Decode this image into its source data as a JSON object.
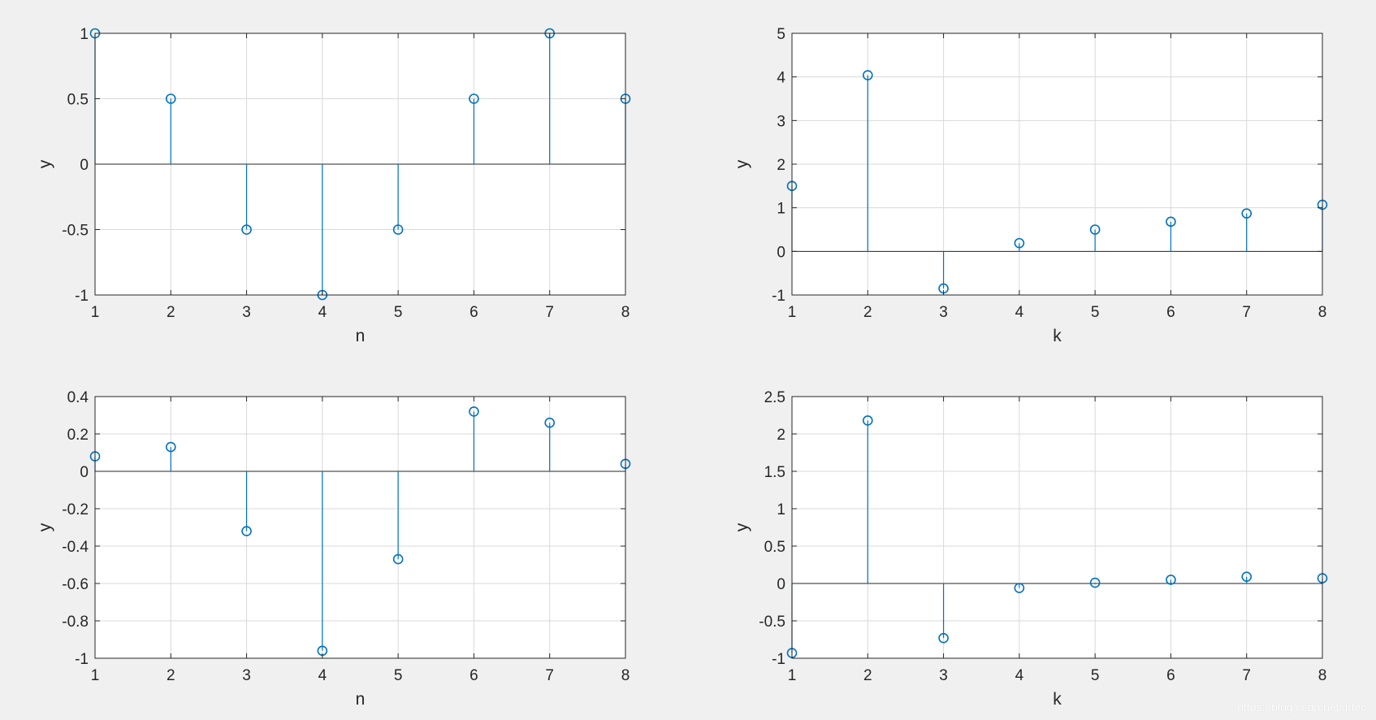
{
  "watermark": "https://blog.csdn.net/iIdec",
  "colors": {
    "stem": "#0072bd",
    "axis": "#262626",
    "grid": "#d9d9d9",
    "background": "#f0f0f0"
  },
  "chart_data": [
    {
      "type": "stem",
      "xlabel": "n",
      "ylabel": "y",
      "x": [
        1,
        2,
        3,
        4,
        5,
        6,
        7,
        8
      ],
      "values": [
        1,
        0.5,
        -0.5,
        -1,
        -0.5,
        0.5,
        1,
        0.5
      ],
      "xlim": [
        1,
        8
      ],
      "ylim": [
        -1,
        1
      ],
      "xticks": [
        1,
        2,
        3,
        4,
        5,
        6,
        7,
        8
      ],
      "yticks": [
        1,
        0.5,
        0,
        -0.5,
        -1
      ],
      "ytick_labels": [
        "1",
        "0.5",
        "0",
        "-0.5",
        "-1"
      ],
      "grid": true
    },
    {
      "type": "stem",
      "xlabel": "k",
      "ylabel": "y",
      "x": [
        1,
        2,
        3,
        4,
        5,
        6,
        7,
        8
      ],
      "values": [
        1.5,
        4.04,
        -0.85,
        0.19,
        0.5,
        0.68,
        0.87,
        1.07
      ],
      "xlim": [
        1,
        8
      ],
      "ylim": [
        -1,
        5
      ],
      "xticks": [
        1,
        2,
        3,
        4,
        5,
        6,
        7,
        8
      ],
      "yticks": [
        5,
        4,
        3,
        2,
        1,
        0,
        -1
      ],
      "ytick_labels": [
        "5",
        "4",
        "3",
        "2",
        "1",
        "0",
        "-1"
      ],
      "grid": true
    },
    {
      "type": "stem",
      "xlabel": "n",
      "ylabel": "y",
      "x": [
        1,
        2,
        3,
        4,
        5,
        6,
        7,
        8
      ],
      "values": [
        0.08,
        0.13,
        -0.32,
        -0.96,
        -0.47,
        0.32,
        0.26,
        0.04
      ],
      "xlim": [
        1,
        8
      ],
      "ylim": [
        -1,
        0.4
      ],
      "xticks": [
        1,
        2,
        3,
        4,
        5,
        6,
        7,
        8
      ],
      "yticks": [
        0.4,
        0.2,
        0,
        -0.2,
        -0.4,
        -0.6,
        -0.8,
        -1
      ],
      "ytick_labels": [
        "0.4",
        "0.2",
        "0",
        "-0.2",
        "-0.4",
        "-0.6",
        "-0.8",
        "-1"
      ],
      "grid": true
    },
    {
      "type": "stem",
      "xlabel": "k",
      "ylabel": "y",
      "x": [
        1,
        2,
        3,
        4,
        5,
        6,
        7,
        8
      ],
      "values": [
        -0.93,
        2.18,
        -0.73,
        -0.06,
        0.01,
        0.05,
        0.09,
        0.07
      ],
      "xlim": [
        1,
        8
      ],
      "ylim": [
        -1,
        2.5
      ],
      "xticks": [
        1,
        2,
        3,
        4,
        5,
        6,
        7,
        8
      ],
      "yticks": [
        2.5,
        2,
        1.5,
        1,
        0.5,
        0,
        -0.5,
        -1
      ],
      "ytick_labels": [
        "2.5",
        "2",
        "1.5",
        "1",
        "0.5",
        "0",
        "-0.5",
        "-1"
      ],
      "grid": true
    }
  ]
}
